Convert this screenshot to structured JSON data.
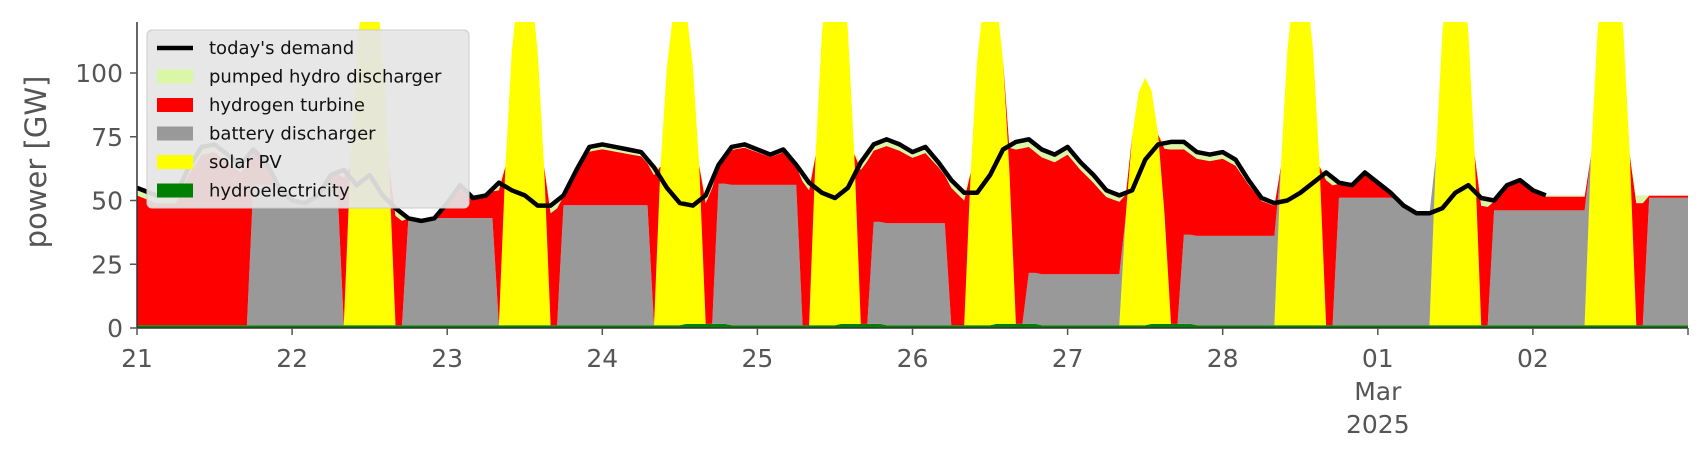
{
  "chart_data": {
    "type": "area",
    "ylabel": "power [GW]",
    "ylim": [
      0,
      120
    ],
    "yticks": [
      0,
      25,
      50,
      75,
      100
    ],
    "x_range": [
      "2025-02-21",
      "2025-03-03"
    ],
    "x_ticks": [
      {
        "date": "2025-02-21",
        "label": "21"
      },
      {
        "date": "2025-02-22",
        "label": "22"
      },
      {
        "date": "2025-02-23",
        "label": "23"
      },
      {
        "date": "2025-02-24",
        "label": "24"
      },
      {
        "date": "2025-02-25",
        "label": "25"
      },
      {
        "date": "2025-02-26",
        "label": "26"
      },
      {
        "date": "2025-02-27",
        "label": "27"
      },
      {
        "date": "2025-02-28",
        "label": "28"
      },
      {
        "date": "2025-03-01",
        "label": "01",
        "sublabel": "Mar",
        "sublabel2": "2025"
      },
      {
        "date": "2025-03-02",
        "label": "02"
      }
    ],
    "grid": false,
    "legend_position": "top-left",
    "stack_order": [
      "hydroelectricity",
      "solar PV",
      "battery discharger",
      "hydrogen turbine",
      "pumped hydro discharger"
    ],
    "series": [
      {
        "name": "today's demand",
        "kind": "line",
        "color": "#000000"
      },
      {
        "name": "pumped hydro discharger",
        "kind": "area",
        "color": "#d9f7a6"
      },
      {
        "name": "hydrogen turbine",
        "kind": "area",
        "color": "#ff0000"
      },
      {
        "name": "battery discharger",
        "kind": "area",
        "color": "#999999"
      },
      {
        "name": "solar PV",
        "kind": "area",
        "color": "#ffff00"
      },
      {
        "name": "hydroelectricity",
        "kind": "area",
        "color": "#008000"
      }
    ],
    "solar_peaks": [
      0,
      140,
      140,
      130,
      150,
      135,
      97,
      140,
      150,
      150
    ],
    "solar_halfwidth_h": [
      3.6,
      3.6,
      3.6,
      3.7,
      3.6,
      3.6,
      3.6,
      3.6,
      3.6,
      3.6
    ],
    "battery_windows": [
      {
        "start": 18,
        "end": 31,
        "level": 55
      },
      {
        "start": 42,
        "end": 55,
        "level": 42
      },
      {
        "start": 66,
        "end": 79,
        "level": 47
      },
      {
        "start": 90,
        "end": 102,
        "level": 55
      },
      {
        "start": 114,
        "end": 125,
        "level": 40
      },
      {
        "start": 138,
        "end": 152,
        "level": 20
      },
      {
        "start": 162,
        "end": 177,
        "level": 35
      },
      {
        "start": 186,
        "end": 203,
        "level": 50
      },
      {
        "start": 210,
        "end": 228,
        "level": 45
      },
      {
        "start": 234,
        "end": 252,
        "level": 50
      }
    ],
    "demand": [
      [
        0,
        55
      ],
      [
        3,
        52
      ],
      [
        6,
        52
      ],
      [
        8,
        63
      ],
      [
        10,
        71
      ],
      [
        12,
        72
      ],
      [
        14,
        68
      ],
      [
        16,
        64
      ],
      [
        18,
        70
      ],
      [
        20,
        65
      ],
      [
        22,
        55
      ],
      [
        24,
        50
      ],
      [
        26,
        49
      ],
      [
        28,
        52
      ],
      [
        30,
        60
      ],
      [
        32,
        62
      ],
      [
        34,
        56
      ],
      [
        36,
        60
      ],
      [
        38,
        52
      ],
      [
        40,
        47
      ],
      [
        42,
        43
      ],
      [
        44,
        42
      ],
      [
        46,
        43
      ],
      [
        48,
        49
      ],
      [
        50,
        56
      ],
      [
        52,
        51
      ],
      [
        54,
        52
      ],
      [
        56,
        57
      ],
      [
        58,
        54
      ],
      [
        60,
        52
      ],
      [
        62,
        48
      ],
      [
        64,
        48
      ],
      [
        66,
        52
      ],
      [
        68,
        62
      ],
      [
        70,
        71
      ],
      [
        72,
        72
      ],
      [
        74,
        71
      ],
      [
        76,
        70
      ],
      [
        78,
        69
      ],
      [
        80,
        63
      ],
      [
        82,
        55
      ],
      [
        84,
        49
      ],
      [
        86,
        48
      ],
      [
        88,
        52
      ],
      [
        90,
        64
      ],
      [
        92,
        71
      ],
      [
        94,
        72
      ],
      [
        96,
        70
      ],
      [
        98,
        68
      ],
      [
        100,
        70
      ],
      [
        102,
        64
      ],
      [
        104,
        57
      ],
      [
        106,
        53
      ],
      [
        108,
        51
      ],
      [
        110,
        55
      ],
      [
        112,
        65
      ],
      [
        114,
        72
      ],
      [
        116,
        74
      ],
      [
        118,
        72
      ],
      [
        120,
        69
      ],
      [
        122,
        71
      ],
      [
        124,
        65
      ],
      [
        126,
        58
      ],
      [
        128,
        53
      ],
      [
        130,
        53
      ],
      [
        132,
        60
      ],
      [
        134,
        70
      ],
      [
        136,
        73
      ],
      [
        138,
        74
      ],
      [
        140,
        70
      ],
      [
        142,
        68
      ],
      [
        144,
        71
      ],
      [
        146,
        65
      ],
      [
        148,
        60
      ],
      [
        150,
        54
      ],
      [
        152,
        52
      ],
      [
        154,
        54
      ],
      [
        156,
        66
      ],
      [
        158,
        72
      ],
      [
        160,
        73
      ],
      [
        162,
        73
      ],
      [
        164,
        69
      ],
      [
        166,
        68
      ],
      [
        168,
        69
      ],
      [
        170,
        66
      ],
      [
        172,
        58
      ],
      [
        174,
        51
      ],
      [
        176,
        49
      ],
      [
        178,
        50
      ],
      [
        180,
        53
      ],
      [
        182,
        57
      ],
      [
        184,
        61
      ],
      [
        186,
        57
      ],
      [
        188,
        56
      ],
      [
        190,
        61
      ],
      [
        192,
        57
      ],
      [
        194,
        53
      ],
      [
        196,
        48
      ],
      [
        198,
        45
      ],
      [
        200,
        45
      ],
      [
        202,
        47
      ],
      [
        204,
        53
      ],
      [
        206,
        56
      ],
      [
        208,
        51
      ],
      [
        210,
        50
      ],
      [
        212,
        56
      ],
      [
        214,
        58
      ],
      [
        216,
        54
      ],
      [
        218,
        52
      ]
    ]
  }
}
